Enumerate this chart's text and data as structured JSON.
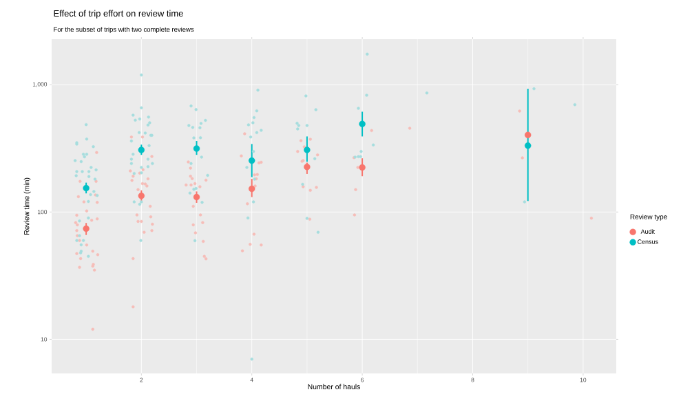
{
  "chart_data": {
    "type": "scatter",
    "title": "Effect of trip effort on review time",
    "subtitle": "For the subset of trips with two complete reviews",
    "xlabel": "Number of hauls",
    "ylabel": "Review time (min)",
    "legend_title": "Review type",
    "log": "y",
    "xlim": [
      0.375,
      10.6
    ],
    "ylim": [
      5.4,
      2275
    ],
    "xticks": [
      2,
      4,
      6,
      8,
      10
    ],
    "yticks": [
      10,
      100,
      {
        "value": 1000,
        "label": "1,000"
      }
    ],
    "grid": true,
    "legend": "right",
    "series": [
      {
        "color": "#F6BDB8",
        "x": [
          1.19,
          0.89,
          1.18,
          0.86,
          1.17,
          0.96,
          1.2,
          1.01,
          0.83,
          0.81,
          1.1,
          1.2,
          0.84,
          0.83,
          0.84,
          0.88,
          1.01,
          1.12,
          1.21,
          0.83,
          0.9,
          1.13,
          1.12,
          0.88,
          1.15,
          1.12,
          1.82,
          2.02,
          2.19,
          1.8,
          1.85,
          1.83,
          2.03,
          1.97,
          2.12,
          2.02,
          2.07,
          2.1,
          1.94,
          2.16,
          1.92,
          2.17,
          1.94,
          2.0,
          2.2,
          2.05,
          2.19,
          1.85,
          1.85,
          2.85,
          2.89,
          2.89,
          2.92,
          2.81,
          2.9,
          2.97,
          3.06,
          3.17,
          2.94,
          3.07,
          3.11,
          2.94,
          2.98,
          3.12,
          3.14,
          3.17,
          3.87,
          3.81,
          4.13,
          4.17,
          4.05,
          4.1,
          4.08,
          4.06,
          3.92,
          4.04,
          3.97,
          4.17,
          3.83,
          4.89,
          5.06,
          4.83,
          4.95,
          5.19,
          4.91,
          4.93,
          4.93,
          5.06,
          5.17,
          5.05,
          6.17,
          5.85,
          5.92,
          5.88,
          5.86,
          6.86,
          8.85,
          8.9,
          10.15
        ],
        "values": [
          293,
          174,
          174,
          132,
          136,
          120,
          119,
          102,
          94.4,
          82.6,
          86.1,
          88.3,
          79.3,
          71.5,
          65.2,
          59.8,
          55.1,
          49.2,
          46.2,
          47.2,
          43.1,
          38.8,
          37.6,
          36.8,
          35.0,
          12.0,
          388,
          388,
          273,
          210,
          191,
          177,
          215,
          202,
          182,
          167,
          166,
          160,
          150,
          111,
          94.8,
          91.7,
          84.4,
          84.4,
          80.3,
          69.4,
          71.5,
          43.1,
          18.0,
          247,
          221,
          191,
          183,
          163,
          163,
          167,
          158,
          178,
          111,
          94.8,
          82.6,
          79.3,
          68.6,
          58.8,
          44.9,
          42.9,
          412,
          276,
          243,
          246,
          196,
          197,
          182,
          160,
          116,
          66.9,
          55.7,
          55.1,
          49.6,
          363,
          373,
          299,
          325,
          281,
          250,
          253,
          158,
          148,
          156,
          87.9,
          436,
          267,
          224,
          150,
          94.8,
          455,
          621,
          266,
          89.4
        ]
      },
      {
        "color": "#A6DDDE",
        "x": [
          1.0,
          1.01,
          0.83,
          0.83,
          1.13,
          0.95,
          1.01,
          0.97,
          0.8,
          0.91,
          1.09,
          0.83,
          0.93,
          1.05,
          1.18,
          0.82,
          1.05,
          1.16,
          1.14,
          1.08,
          1.2,
          1.04,
          1.04,
          0.88,
          0.88,
          0.83,
          0.95,
          0.91,
          0.91,
          0.9,
          1.04,
          2.0,
          2.0,
          1.85,
          1.89,
          1.97,
          2.13,
          2.15,
          2.12,
          1.96,
          2.07,
          2.19,
          2.17,
          1.82,
          2.14,
          1.85,
          1.82,
          2.12,
          1.82,
          2.2,
          2.0,
          2.12,
          1.87,
          2.0,
          1.87,
          1.97,
          2.0,
          1.99,
          2.9,
          2.99,
          2.86,
          2.93,
          3.08,
          3.06,
          3.16,
          2.95,
          3.07,
          3.09,
          2.9,
          3.2,
          2.88,
          2.99,
          2.95,
          3.1,
          2.97,
          4.11,
          4.09,
          4.04,
          4.02,
          3.94,
          3.98,
          4.17,
          4.09,
          4.03,
          3.91,
          4.05,
          4.03,
          3.93,
          4.0,
          4.98,
          5.16,
          4.82,
          4.85,
          4.83,
          5.0,
          5.14,
          4.92,
          5.0,
          5.2,
          6.09,
          6.08,
          5.93,
          6.2,
          5.98,
          5.87,
          5.93,
          5.97,
          7.17,
          9.11,
          9.85,
          8.94
        ],
        "values": [
          486,
          374,
          350,
          341,
          326,
          284,
          284,
          271,
          253,
          249,
          224,
          208,
          208,
          208,
          214,
          193,
          190,
          181,
          145,
          137,
          135,
          121,
          89.8,
          85.1,
          65.2,
          59.8,
          59.8,
          55.2,
          49.2,
          47.8,
          44.9,
          1190,
          658,
          576,
          526,
          537,
          557,
          502,
          482,
          420,
          417,
          400,
          400,
          361,
          332,
          284,
          260,
          260,
          240,
          240,
          224,
          227,
          201,
          203,
          120,
          115,
          120,
          59.8,
          680,
          637,
          478,
          462,
          496,
          459,
          524,
          382,
          383,
          270,
          240,
          194,
          141,
          153,
          151,
          119,
          59.6,
          906,
          623,
          552,
          502,
          484,
          388,
          438,
          420,
          299,
          224,
          181,
          120,
          89.8,
          7.0,
          816,
          636,
          498,
          478,
          449,
          478,
          262,
          165,
          89.1,
          69.4,
          1737,
          826,
          652,
          336,
          299,
          270,
          272,
          272,
          861,
          928,
          697,
          120
        ]
      },
      {
        "name": "Audit",
        "color": "#F8766D",
        "x": [
          1,
          2,
          3,
          4,
          5,
          6,
          9
        ],
        "values": [
          74,
          134,
          131,
          152,
          226,
          224,
          403
        ],
        "errors": [
          [
            66,
            82
          ],
          [
            120,
            148
          ],
          [
            118,
            145
          ],
          [
            131,
            182
          ],
          [
            199,
            244
          ],
          [
            191,
            264
          ],
          null
        ]
      },
      {
        "name": "Census",
        "color": "#00BFC4",
        "x": [
          1,
          2,
          3,
          4,
          5,
          6,
          9
        ],
        "values": [
          154,
          307,
          315,
          253,
          307,
          492,
          332
        ],
        "errors": [
          [
            140,
            170
          ],
          [
            281,
            338
          ],
          [
            281,
            361
          ],
          [
            188,
            342
          ],
          [
            248,
            392
          ],
          [
            392,
            613
          ],
          [
            122,
            929
          ]
        ]
      }
    ]
  }
}
